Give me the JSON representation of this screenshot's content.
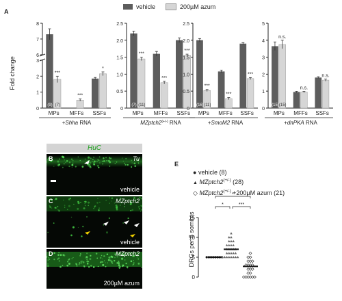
{
  "panel_labels": {
    "a": "A",
    "b": "B",
    "c": "C",
    "d": "D",
    "e": "E"
  },
  "legend_a": {
    "vehicle": "vehicle",
    "azum": "200µM azum",
    "vehicle_color": "#5d5d5d",
    "azum_color": "#d6d6d6"
  },
  "y_axis_label": "Fold change",
  "chart_data": [
    {
      "type": "bar",
      "treatment_pre": "+",
      "treatment_it": "Shha",
      "treatment_post": " RNA",
      "categories": [
        "MPs",
        "MFFs",
        "SSFs"
      ],
      "axis_break": {
        "lower": [
          0,
          3
        ],
        "upper": [
          6,
          8
        ]
      },
      "ticks": [
        "0",
        "1",
        "2",
        "3",
        "6",
        "7",
        "8"
      ],
      "series": [
        {
          "name": "vehicle",
          "values": [
            7.3,
            0.0,
            1.85
          ],
          "errors": [
            0.35,
            0,
            0.07
          ]
        },
        {
          "name": "200µM azum",
          "values": [
            1.8,
            0.5,
            2.15
          ],
          "errors": [
            0.2,
            0.07,
            0.12
          ]
        }
      ],
      "sig": [
        "***",
        "***",
        "*"
      ],
      "n_vehicle": "(9)",
      "n_azum": "(7)"
    },
    {
      "type": "bar",
      "treatment_pre": "",
      "treatment_it": "MZptch2",
      "treatment_sup": "(+/-)",
      "treatment_post": " RNA",
      "categories": [
        "MPs",
        "MFFs",
        "SSFs"
      ],
      "ylim": [
        0,
        2.5
      ],
      "ticks": [
        "0",
        "0.5",
        "1.0",
        "1.5",
        "2.0",
        "2.5"
      ],
      "series": [
        {
          "name": "vehicle",
          "values": [
            2.2,
            1.6,
            2.0
          ],
          "errors": [
            0.07,
            0.07,
            0.07
          ]
        },
        {
          "name": "200µM azum",
          "values": [
            1.45,
            0.75,
            1.55
          ],
          "errors": [
            0.05,
            0.04,
            0.04
          ]
        }
      ],
      "sig": [
        "***",
        "***",
        "***"
      ],
      "n_vehicle": "(7)",
      "n_azum": "(11)"
    },
    {
      "type": "bar",
      "treatment_pre": "+",
      "treatment_it": "SmoM2",
      "treatment_post": " RNA",
      "categories": [
        "MPs",
        "MFFs",
        "SSFs"
      ],
      "ylim": [
        0,
        2.5
      ],
      "ticks": [
        "0",
        "0.5",
        "1.0",
        "1.5",
        "2.0",
        "2.5"
      ],
      "series": [
        {
          "name": "vehicle",
          "values": [
            2.0,
            1.08,
            1.9
          ],
          "errors": [
            0.05,
            0.04,
            0.03
          ]
        },
        {
          "name": "200µM azum",
          "values": [
            0.52,
            0.28,
            0.87
          ],
          "errors": [
            0.03,
            0.03,
            0.03
          ]
        }
      ],
      "sig": [
        "***",
        "***",
        "***"
      ],
      "n_vehicle": "(16)",
      "n_azum": "(11)"
    },
    {
      "type": "bar",
      "treatment_pre": "+",
      "treatment_it": "dnPKA",
      "treatment_post": " RNA",
      "categories": [
        "MPs",
        "MFFs",
        "SSFs"
      ],
      "ylim": [
        0,
        5
      ],
      "ticks": [
        "0",
        "1",
        "2",
        "3",
        "4",
        "5"
      ],
      "series": [
        {
          "name": "vehicle",
          "values": [
            3.65,
            0.95,
            1.8
          ],
          "errors": [
            0.25,
            0.04,
            0.05
          ]
        },
        {
          "name": "200µM azum",
          "values": [
            3.75,
            0.95,
            1.65
          ],
          "errors": [
            0.25,
            0.04,
            0.06
          ]
        }
      ],
      "sig": [
        "n.s.",
        "n.s.",
        "n.s."
      ],
      "n_vehicle": "(15)",
      "n_azum": "(15)"
    },
    {
      "type": "scatter",
      "ylabel": "DRGs per 5 somites",
      "ylim": [
        0,
        15
      ],
      "ticks": [
        "0",
        "5",
        "10",
        "15"
      ],
      "legend": [
        {
          "marker": "●",
          "pre": "vehicle (8)",
          "it": "",
          "sup": "",
          "post": ""
        },
        {
          "marker": "▲",
          "pre": "",
          "it": "MZptch2",
          "sup": "(+/-)",
          "post": " (28)"
        },
        {
          "marker": "◇",
          "pre": "",
          "it": "MZptch2",
          "sup": "(+/-)",
          "post": " +200µM azum (21)"
        }
      ],
      "groups": [
        {
          "name": "vehicle",
          "marker": "circle",
          "mean": 5,
          "values": [
            5,
            5,
            5,
            5,
            5,
            5,
            5,
            5
          ]
        },
        {
          "name": "MZptch2(+/-)",
          "marker": "triangle",
          "mean": 7,
          "values": [
            5,
            5,
            5,
            5,
            5,
            5,
            5,
            5,
            6,
            6,
            6,
            6,
            6,
            7,
            7,
            7,
            7,
            7,
            8,
            8,
            8,
            8,
            9,
            9,
            9,
            10,
            10,
            11
          ]
        },
        {
          "name": "MZptch2(+/-) +200µM azum",
          "marker": "diamond",
          "mean": 2.7,
          "values": [
            0,
            0,
            0,
            0,
            0,
            0,
            1,
            1,
            2,
            2,
            2,
            3,
            3,
            3,
            3,
            4,
            4,
            4,
            5,
            5,
            6
          ]
        }
      ],
      "sig": {
        "outer": "*",
        "left": "*",
        "right": "***"
      }
    }
  ],
  "micro": {
    "header": "HuC",
    "b": {
      "tl": "Tu",
      "br": "vehicle"
    },
    "c": {
      "tr": "MZptch2",
      "br": "vehicle"
    },
    "d": {
      "tr": "MZptch2",
      "br": "200µM azum"
    }
  }
}
